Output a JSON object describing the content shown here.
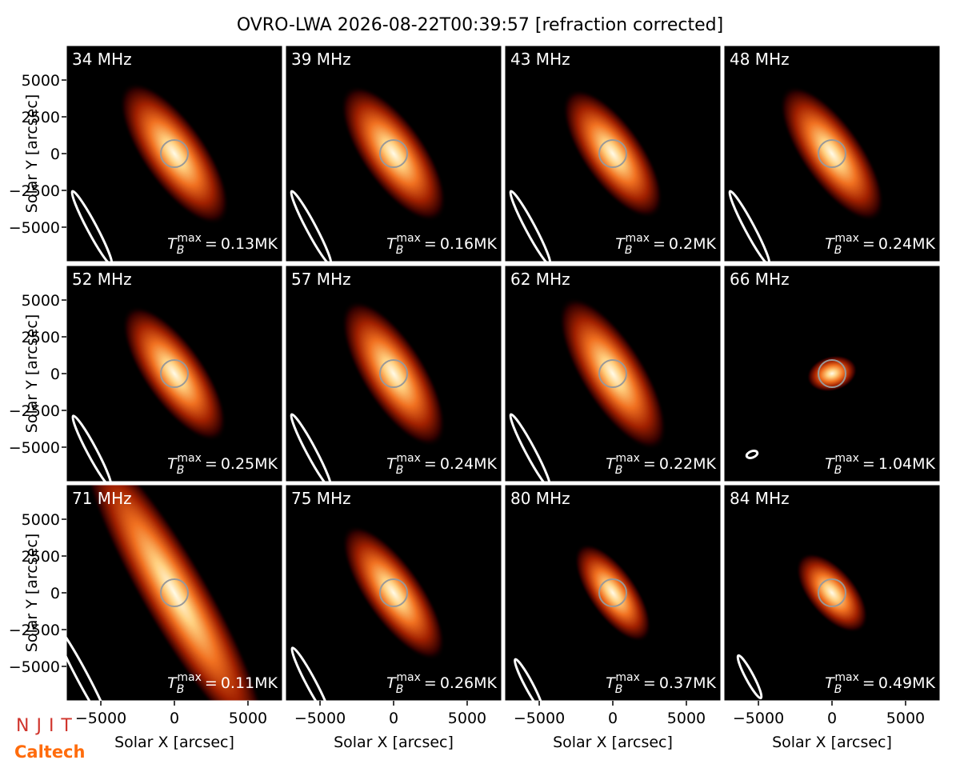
{
  "chart_data": {
    "type": "image-grid",
    "title": "OVRO-LWA 2026-08-22T00:39:57 [refraction corrected]",
    "categories": [
      "34 MHz",
      "39 MHz",
      "43 MHz",
      "48 MHz",
      "52 MHz",
      "57 MHz",
      "62 MHz",
      "66 MHz",
      "71 MHz",
      "75 MHz",
      "80 MHz",
      "84 MHz"
    ],
    "values": [
      0.13,
      0.16,
      0.2,
      0.24,
      0.25,
      0.24,
      0.22,
      1.04,
      0.11,
      0.26,
      0.37,
      0.49
    ],
    "value_labels": [
      "0.13MK",
      "0.16MK",
      "0.2MK",
      "0.24MK",
      "0.25MK",
      "0.24MK",
      "0.22MK",
      "1.04MK",
      "0.11MK",
      "0.26MK",
      "0.37MK",
      "0.49MK"
    ],
    "tb_symbol": {
      "base": "T",
      "sub": "B",
      "sup": "max",
      "eq": "="
    },
    "xlabel": "Solar X [arcsec]",
    "ylabel": "Solar Y [arcsec]",
    "xlim": [
      -7340,
      7340
    ],
    "ylim": [
      -7340,
      7340
    ],
    "xticks": [
      {
        "value": -5000,
        "label": "−5000"
      },
      0,
      5000
    ],
    "yticks": [
      {
        "value": -5000,
        "label": "−5000"
      },
      {
        "value": -2500,
        "label": "−2500"
      },
      0,
      2500,
      5000
    ],
    "logos": [
      "NJIT",
      "Caltech"
    ]
  }
}
